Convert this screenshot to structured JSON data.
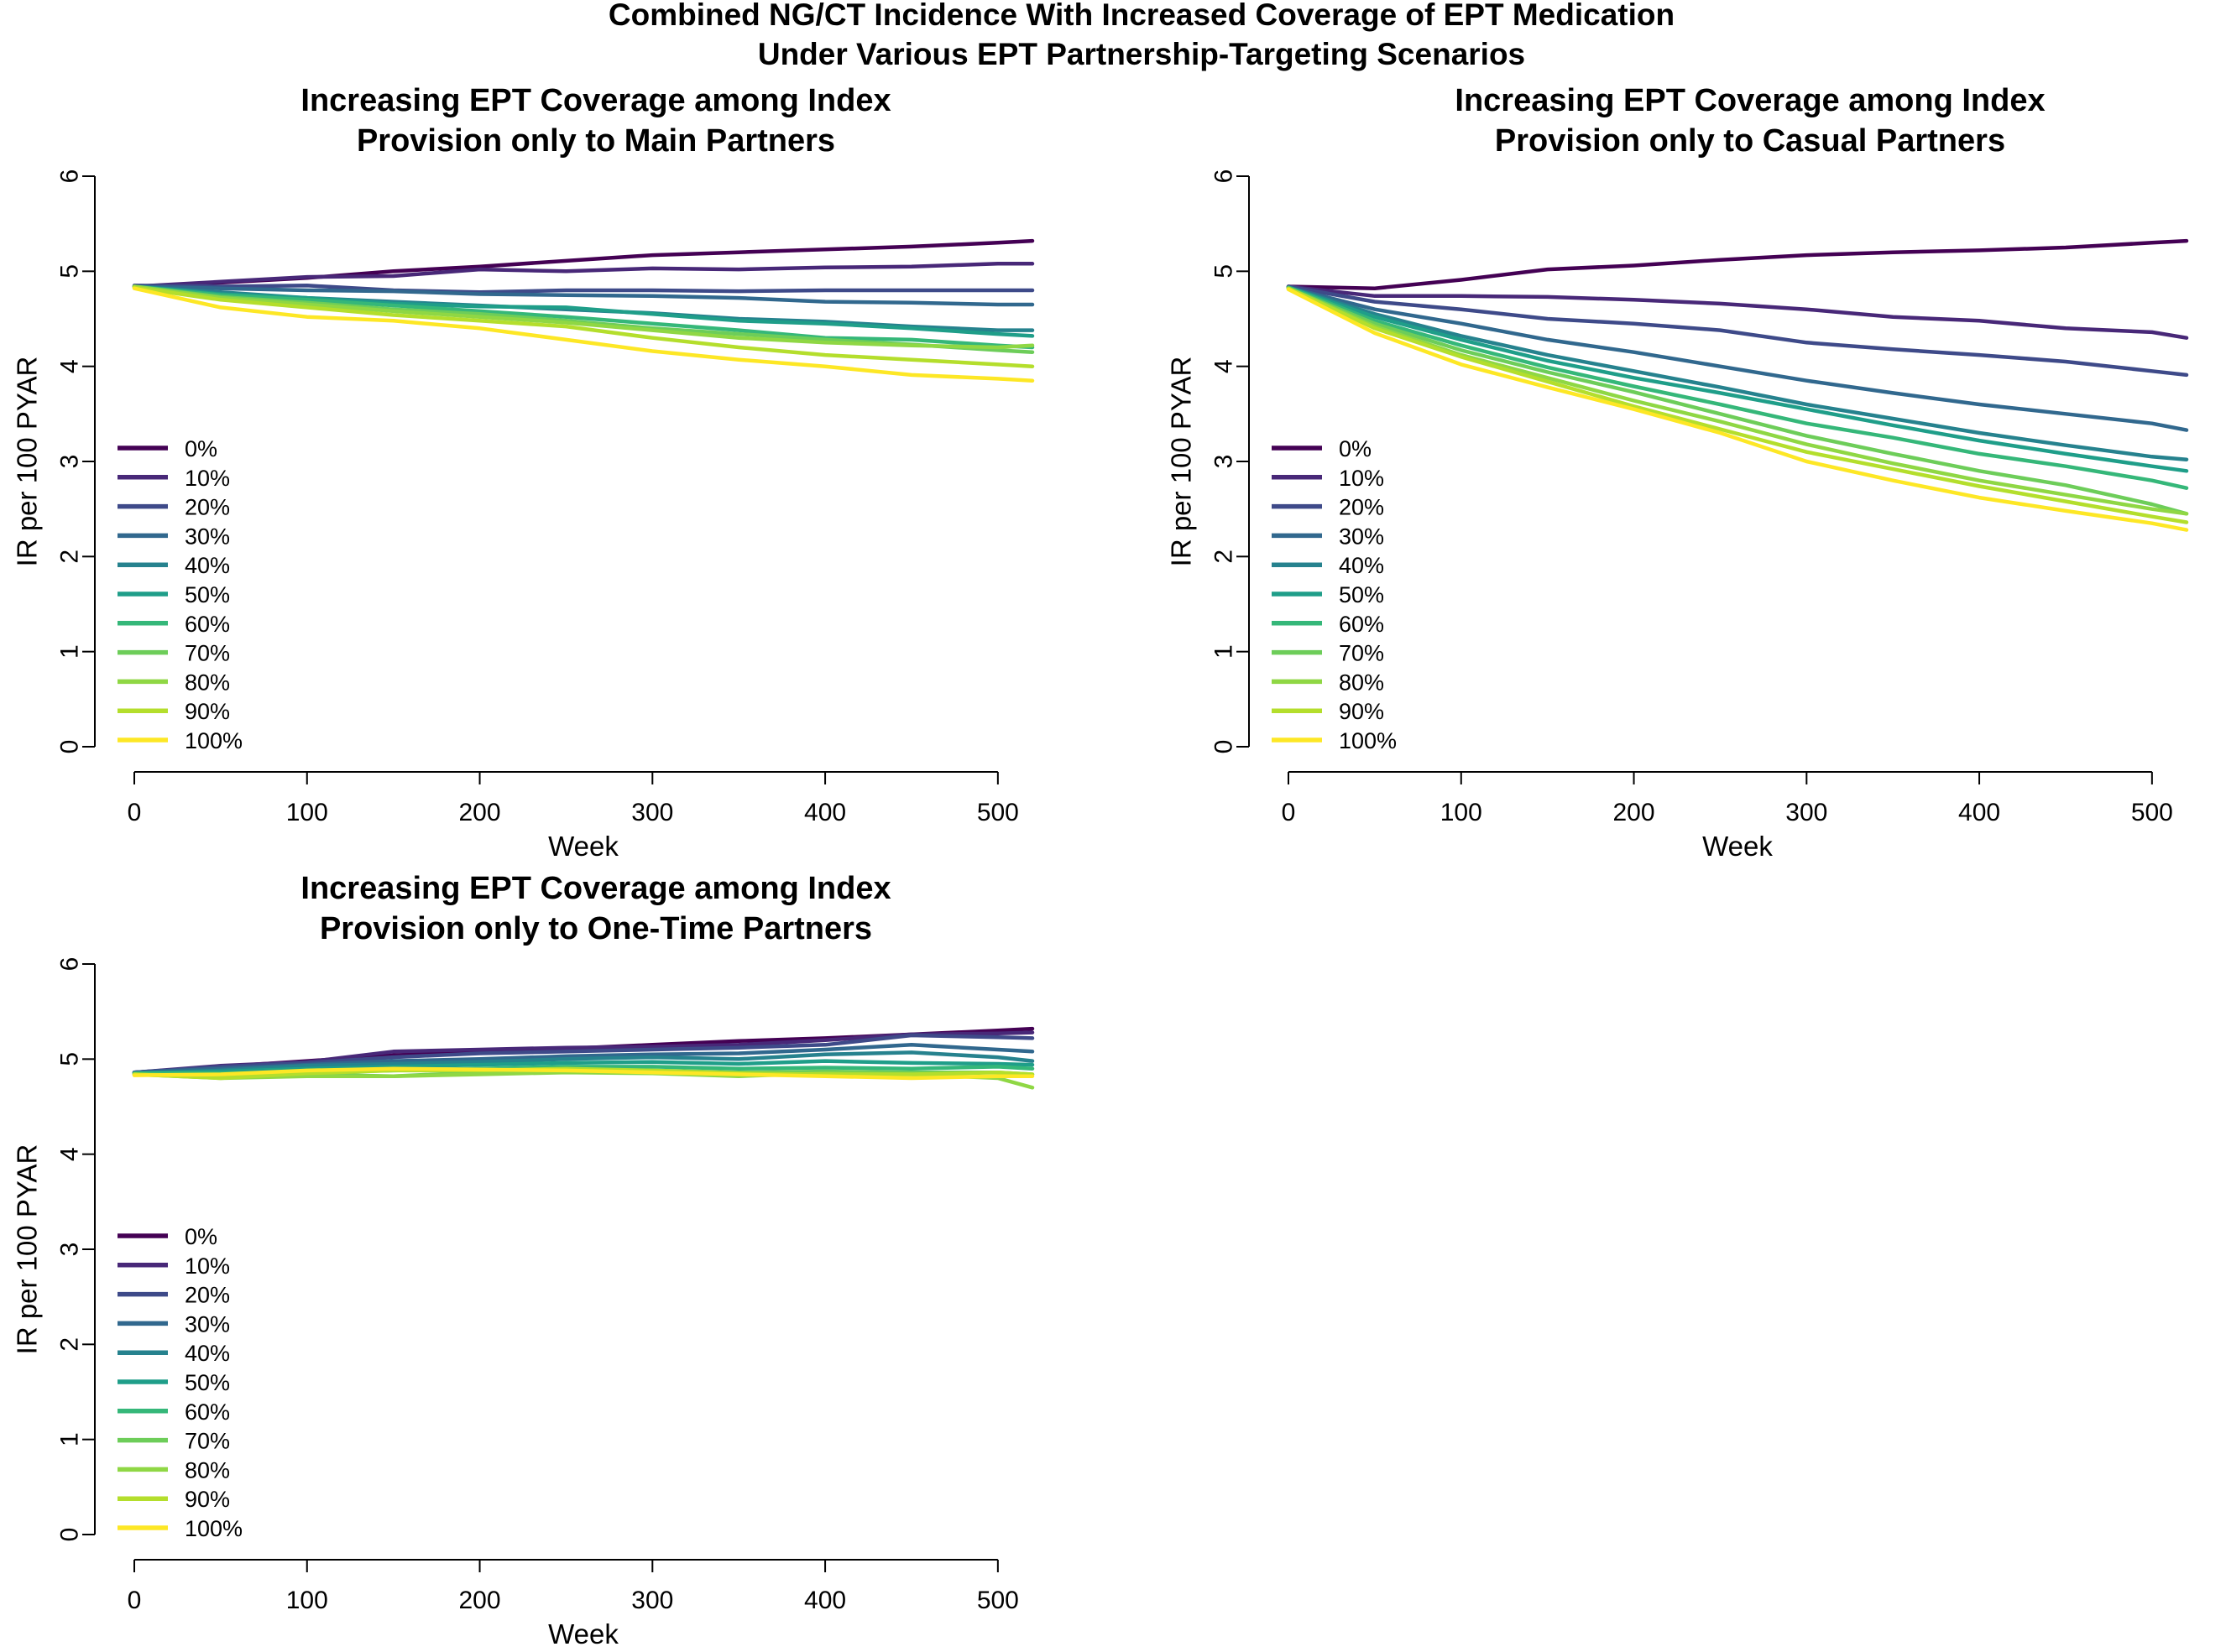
{
  "figure": {
    "title_line1": "Combined NG/CT Incidence With Increased Coverage of EPT Medication",
    "title_line2": "Under Various EPT Partnership-Targeting Scenarios"
  },
  "series_colors": [
    "#440154",
    "#482878",
    "#3E4A89",
    "#31688E",
    "#26828E",
    "#1F9E89",
    "#35B779",
    "#6DCD59",
    "#8FD744",
    "#B4DE2C",
    "#FDE725"
  ],
  "chart_data": [
    {
      "type": "line",
      "title_line1": "Increasing EPT Coverage among Index",
      "title_line2": "Provision only to Main Partners",
      "xlabel": "Week",
      "ylabel": "IR per 100 PYAR",
      "xlim": [
        0,
        520
      ],
      "ylim": [
        0,
        6
      ],
      "xticks": [
        0,
        100,
        200,
        300,
        400,
        500
      ],
      "yticks": [
        0,
        1,
        2,
        3,
        4,
        5,
        6
      ],
      "grid": false,
      "legend_position": "bottom-left",
      "x": [
        0,
        50,
        100,
        150,
        200,
        250,
        300,
        350,
        400,
        450,
        500,
        520
      ],
      "series": [
        {
          "name": "0%",
          "values": [
            4.84,
            4.88,
            4.93,
            5.0,
            5.05,
            5.11,
            5.17,
            5.2,
            5.23,
            5.26,
            5.3,
            5.32
          ]
        },
        {
          "name": "10%",
          "values": [
            4.84,
            4.89,
            4.94,
            4.95,
            5.02,
            5.0,
            5.03,
            5.02,
            5.04,
            5.05,
            5.08,
            5.08
          ]
        },
        {
          "name": "20%",
          "values": [
            4.85,
            4.84,
            4.85,
            4.8,
            4.78,
            4.8,
            4.8,
            4.79,
            4.8,
            4.8,
            4.8,
            4.8
          ]
        },
        {
          "name": "30%",
          "values": [
            4.84,
            4.82,
            4.8,
            4.79,
            4.76,
            4.75,
            4.74,
            4.72,
            4.68,
            4.67,
            4.65,
            4.65
          ]
        },
        {
          "name": "40%",
          "values": [
            4.84,
            4.78,
            4.72,
            4.68,
            4.64,
            4.6,
            4.56,
            4.5,
            4.47,
            4.42,
            4.38,
            4.38
          ]
        },
        {
          "name": "50%",
          "values": [
            4.84,
            4.76,
            4.72,
            4.66,
            4.63,
            4.62,
            4.55,
            4.48,
            4.45,
            4.4,
            4.34,
            4.32
          ]
        },
        {
          "name": "60%",
          "values": [
            4.84,
            4.75,
            4.7,
            4.64,
            4.58,
            4.52,
            4.45,
            4.38,
            4.3,
            4.28,
            4.22,
            4.2
          ]
        },
        {
          "name": "70%",
          "values": [
            4.84,
            4.73,
            4.67,
            4.6,
            4.55,
            4.48,
            4.4,
            4.34,
            4.28,
            4.23,
            4.17,
            4.15
          ]
        },
        {
          "name": "80%",
          "values": [
            4.84,
            4.72,
            4.65,
            4.58,
            4.52,
            4.46,
            4.38,
            4.3,
            4.25,
            4.22,
            4.2,
            4.22
          ]
        },
        {
          "name": "90%",
          "values": [
            4.83,
            4.7,
            4.62,
            4.54,
            4.48,
            4.42,
            4.3,
            4.2,
            4.12,
            4.07,
            4.02,
            4.0
          ]
        },
        {
          "name": "100%",
          "values": [
            4.82,
            4.62,
            4.52,
            4.48,
            4.4,
            4.28,
            4.16,
            4.07,
            4.0,
            3.91,
            3.87,
            3.85
          ]
        }
      ]
    },
    {
      "type": "line",
      "title_line1": "Increasing EPT Coverage among Index",
      "title_line2": "Provision only to Casual Partners",
      "xlabel": "Week",
      "ylabel": "IR per 100 PYAR",
      "xlim": [
        0,
        520
      ],
      "ylim": [
        0,
        6
      ],
      "xticks": [
        0,
        100,
        200,
        300,
        400,
        500
      ],
      "yticks": [
        0,
        1,
        2,
        3,
        4,
        5,
        6
      ],
      "grid": false,
      "legend_position": "bottom-left",
      "x": [
        0,
        50,
        100,
        150,
        200,
        250,
        300,
        350,
        400,
        450,
        500,
        520
      ],
      "series": [
        {
          "name": "0%",
          "values": [
            4.84,
            4.82,
            4.91,
            5.02,
            5.06,
            5.12,
            5.17,
            5.2,
            5.22,
            5.25,
            5.3,
            5.32
          ]
        },
        {
          "name": "10%",
          "values": [
            4.84,
            4.74,
            4.74,
            4.73,
            4.7,
            4.66,
            4.6,
            4.52,
            4.48,
            4.4,
            4.36,
            4.3
          ]
        },
        {
          "name": "20%",
          "values": [
            4.84,
            4.68,
            4.6,
            4.5,
            4.45,
            4.38,
            4.25,
            4.18,
            4.12,
            4.05,
            3.95,
            3.91
          ]
        },
        {
          "name": "30%",
          "values": [
            4.83,
            4.6,
            4.45,
            4.28,
            4.15,
            4.0,
            3.85,
            3.72,
            3.6,
            3.5,
            3.4,
            3.33
          ]
        },
        {
          "name": "40%",
          "values": [
            4.83,
            4.55,
            4.32,
            4.12,
            3.95,
            3.78,
            3.6,
            3.45,
            3.3,
            3.17,
            3.05,
            3.02
          ]
        },
        {
          "name": "50%",
          "values": [
            4.83,
            4.52,
            4.28,
            4.06,
            3.88,
            3.72,
            3.55,
            3.38,
            3.22,
            3.08,
            2.95,
            2.9
          ]
        },
        {
          "name": "60%",
          "values": [
            4.83,
            4.48,
            4.22,
            3.99,
            3.79,
            3.6,
            3.4,
            3.25,
            3.08,
            2.95,
            2.8,
            2.72
          ]
        },
        {
          "name": "70%",
          "values": [
            4.82,
            4.45,
            4.17,
            3.94,
            3.73,
            3.5,
            3.27,
            3.08,
            2.9,
            2.75,
            2.55,
            2.45
          ]
        },
        {
          "name": "80%",
          "values": [
            4.82,
            4.42,
            4.12,
            3.88,
            3.64,
            3.42,
            3.18,
            2.98,
            2.8,
            2.65,
            2.5,
            2.45
          ]
        },
        {
          "name": "90%",
          "values": [
            4.82,
            4.4,
            4.1,
            3.84,
            3.58,
            3.34,
            3.1,
            2.92,
            2.74,
            2.58,
            2.42,
            2.36
          ]
        },
        {
          "name": "100%",
          "values": [
            4.81,
            4.35,
            4.02,
            3.78,
            3.55,
            3.3,
            3.0,
            2.8,
            2.62,
            2.48,
            2.35,
            2.28
          ]
        }
      ]
    },
    {
      "type": "line",
      "title_line1": "Increasing EPT Coverage among Index",
      "title_line2": "Provision only to One-Time Partners",
      "xlabel": "Week",
      "ylabel": "IR per 100 PYAR",
      "xlim": [
        0,
        520
      ],
      "ylim": [
        0,
        6
      ],
      "xticks": [
        0,
        100,
        200,
        300,
        400,
        500
      ],
      "yticks": [
        0,
        1,
        2,
        3,
        4,
        5,
        6
      ],
      "grid": false,
      "legend_position": "bottom-left",
      "x": [
        0,
        50,
        100,
        150,
        200,
        250,
        300,
        350,
        400,
        450,
        500,
        520
      ],
      "series": [
        {
          "name": "0%",
          "values": [
            4.86,
            4.92,
            4.98,
            5.04,
            5.08,
            5.11,
            5.15,
            5.19,
            5.22,
            5.26,
            5.3,
            5.32
          ]
        },
        {
          "name": "10%",
          "values": [
            4.86,
            4.93,
            4.97,
            5.08,
            5.1,
            5.12,
            5.13,
            5.15,
            5.2,
            5.26,
            5.27,
            5.28
          ]
        },
        {
          "name": "20%",
          "values": [
            4.86,
            4.92,
            4.96,
            5.02,
            5.06,
            5.08,
            5.1,
            5.12,
            5.15,
            5.25,
            5.23,
            5.22
          ]
        },
        {
          "name": "30%",
          "values": [
            4.86,
            4.9,
            4.94,
            4.98,
            5.0,
            5.03,
            5.05,
            5.06,
            5.1,
            5.15,
            5.1,
            5.08
          ]
        },
        {
          "name": "40%",
          "values": [
            4.85,
            4.88,
            4.93,
            4.95,
            4.97,
            5.0,
            5.02,
            5.0,
            5.05,
            5.07,
            5.02,
            4.98
          ]
        },
        {
          "name": "50%",
          "values": [
            4.85,
            4.87,
            4.9,
            4.92,
            4.94,
            4.96,
            4.97,
            4.95,
            4.98,
            4.96,
            4.95,
            4.94
          ]
        },
        {
          "name": "60%",
          "values": [
            4.85,
            4.85,
            4.86,
            4.88,
            4.9,
            4.92,
            4.92,
            4.9,
            4.91,
            4.9,
            4.92,
            4.9
          ]
        },
        {
          "name": "70%",
          "values": [
            4.84,
            4.82,
            4.84,
            4.82,
            4.86,
            4.89,
            4.88,
            4.86,
            4.87,
            4.86,
            4.86,
            4.84
          ]
        },
        {
          "name": "80%",
          "values": [
            4.84,
            4.8,
            4.82,
            4.82,
            4.84,
            4.86,
            4.85,
            4.82,
            4.85,
            4.84,
            4.8,
            4.7
          ]
        },
        {
          "name": "90%",
          "values": [
            4.84,
            4.8,
            4.85,
            4.88,
            4.88,
            4.9,
            4.88,
            4.85,
            4.84,
            4.84,
            4.86,
            4.84
          ]
        },
        {
          "name": "100%",
          "values": [
            4.83,
            4.84,
            4.88,
            4.9,
            4.89,
            4.88,
            4.86,
            4.84,
            4.82,
            4.8,
            4.82,
            4.82
          ]
        }
      ]
    }
  ]
}
